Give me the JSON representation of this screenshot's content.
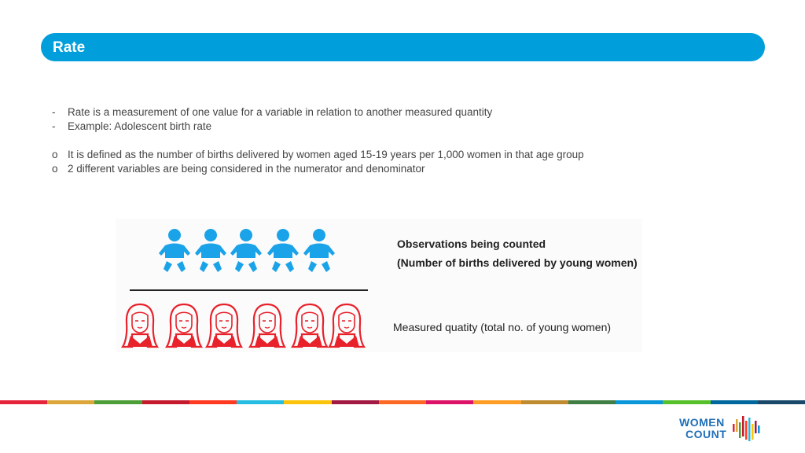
{
  "header": {
    "title": "Rate"
  },
  "bullets": [
    {
      "mark": "-",
      "text": "Rate is a measurement of one value for a variable in relation to another measured quantity"
    },
    {
      "mark": "-",
      "text": "Example: Adolescent birth rate"
    },
    {
      "mark": "o",
      "text": "It is defined as the number of births delivered by women aged 15-19 years per 1,000 women in that age group"
    },
    {
      "mark": "o",
      "text": "2 different variables are being considered in the numerator and denominator"
    }
  ],
  "illustration": {
    "numerator_label_1": "Observations being counted",
    "numerator_label_2": "(Number of births delivered by young women)",
    "denominator_label": "Measured quatity (total no. of young women)",
    "baby_icon_count": 5,
    "woman_icon_count": 6,
    "baby_color": "#1aa3e8",
    "woman_color": "#e8212b"
  },
  "stripe_colors": [
    "#e5243b",
    "#dda63a",
    "#4c9f38",
    "#c5192d",
    "#ff3a21",
    "#26bde2",
    "#fcc30b",
    "#a21942",
    "#fd6925",
    "#dd1367",
    "#fd9d24",
    "#bf8b2e",
    "#3f7e44",
    "#0a97d9",
    "#56c02b",
    "#00689d",
    "#19486a"
  ],
  "logo": {
    "line1": "WOMEN",
    "line2": "COUNT",
    "color": "#1f6fb8"
  }
}
